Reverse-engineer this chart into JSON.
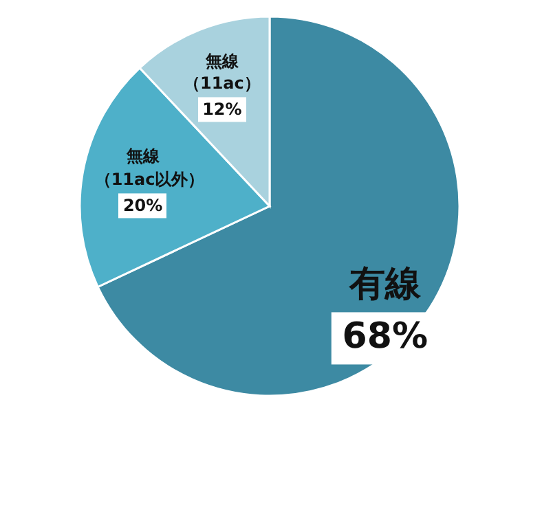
{
  "chart_data": {
    "type": "pie",
    "categories": [
      "有線",
      "無線（11ac以外）",
      "無線（11ac）"
    ],
    "values": [
      68,
      20,
      12
    ],
    "colors": [
      "#3d8aa3",
      "#4eb0c9",
      "#a9d2de"
    ],
    "value_labels": [
      "68%",
      "20%",
      "12%"
    ]
  }
}
